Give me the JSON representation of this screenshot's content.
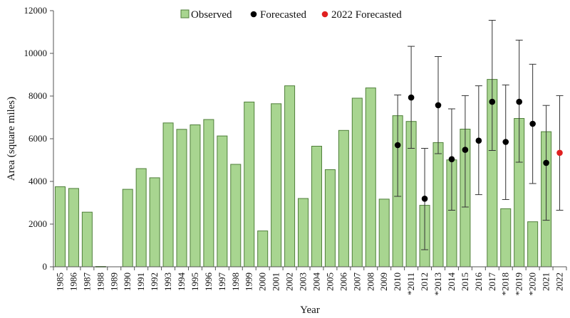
{
  "chart_data": {
    "type": "bar",
    "title": "",
    "xlabel": "Year",
    "ylabel": "Area (square miles)",
    "ylim": [
      0,
      12000
    ],
    "yticks": [
      "0",
      "2000",
      "4000",
      "6000",
      "8000",
      "10000",
      "12000"
    ],
    "grid": false,
    "legend_position": "top-center",
    "colors": {
      "bar_fill": "#a8d590",
      "bar_stroke": "#4f7f3a",
      "forecast": "#000000",
      "forecast_2022": "#e02020",
      "axis": "#555555"
    },
    "legend": [
      {
        "label": "Observed",
        "kind": "bar"
      },
      {
        "label": "Forecasted",
        "kind": "dot"
      },
      {
        "label": "2022 Forecasted",
        "kind": "dot-red"
      }
    ],
    "categories": [
      "1985",
      "1986",
      "1987",
      "1988",
      "1989",
      "1990",
      "1991",
      "1992",
      "1993",
      "1994",
      "1995",
      "1996",
      "1997",
      "1998",
      "1999",
      "2000",
      "2001",
      "2002",
      "2003",
      "2004",
      "2005",
      "2006",
      "2007",
      "2008",
      "2009",
      "2010",
      "*2011",
      "2012",
      "*2013",
      "2014",
      "2015",
      "2016",
      "2017",
      "*2018",
      "*2019",
      "*2020",
      "2021",
      "2022"
    ],
    "series": [
      {
        "name": "Observed",
        "values": [
          3750,
          3670,
          2560,
          15,
          null,
          3630,
          4600,
          4170,
          6740,
          6440,
          6650,
          6900,
          6130,
          4800,
          7720,
          1680,
          7640,
          8480,
          3200,
          5650,
          4550,
          6390,
          7900,
          8380,
          3170,
          7080,
          6810,
          2880,
          5820,
          5010,
          6450,
          null,
          8780,
          2720,
          6950,
          2110,
          6330,
          null
        ]
      },
      {
        "name": "Forecasted",
        "values": [
          null,
          null,
          null,
          null,
          null,
          null,
          null,
          null,
          null,
          null,
          null,
          null,
          null,
          null,
          null,
          null,
          null,
          null,
          null,
          null,
          null,
          null,
          null,
          null,
          null,
          5700,
          7930,
          3190,
          7570,
          5040,
          5480,
          5910,
          7730,
          5850,
          7730,
          6700,
          4870,
          null
        ],
        "error_low": [
          null,
          null,
          null,
          null,
          null,
          null,
          null,
          null,
          null,
          null,
          null,
          null,
          null,
          null,
          null,
          null,
          null,
          null,
          null,
          null,
          null,
          null,
          null,
          null,
          null,
          3300,
          5550,
          800,
          5300,
          2650,
          2800,
          3380,
          5450,
          3150,
          4900,
          3900,
          2180,
          null
        ],
        "error_high": [
          null,
          null,
          null,
          null,
          null,
          null,
          null,
          null,
          null,
          null,
          null,
          null,
          null,
          null,
          null,
          null,
          null,
          null,
          null,
          null,
          null,
          null,
          null,
          null,
          null,
          8050,
          10330,
          5550,
          9850,
          7400,
          8020,
          8480,
          11550,
          8520,
          10620,
          9490,
          7560,
          null
        ]
      },
      {
        "name": "2022 Forecasted",
        "values": [
          null,
          null,
          null,
          null,
          null,
          null,
          null,
          null,
          null,
          null,
          null,
          null,
          null,
          null,
          null,
          null,
          null,
          null,
          null,
          null,
          null,
          null,
          null,
          null,
          null,
          null,
          null,
          null,
          null,
          null,
          null,
          null,
          null,
          null,
          null,
          null,
          null,
          5340
        ],
        "error_low": [
          null,
          null,
          null,
          null,
          null,
          null,
          null,
          null,
          null,
          null,
          null,
          null,
          null,
          null,
          null,
          null,
          null,
          null,
          null,
          null,
          null,
          null,
          null,
          null,
          null,
          null,
          null,
          null,
          null,
          null,
          null,
          null,
          null,
          null,
          null,
          null,
          null,
          2650
        ],
        "error_high": [
          null,
          null,
          null,
          null,
          null,
          null,
          null,
          null,
          null,
          null,
          null,
          null,
          null,
          null,
          null,
          null,
          null,
          null,
          null,
          null,
          null,
          null,
          null,
          null,
          null,
          null,
          null,
          null,
          null,
          null,
          null,
          null,
          null,
          null,
          null,
          null,
          null,
          8020
        ]
      }
    ]
  }
}
